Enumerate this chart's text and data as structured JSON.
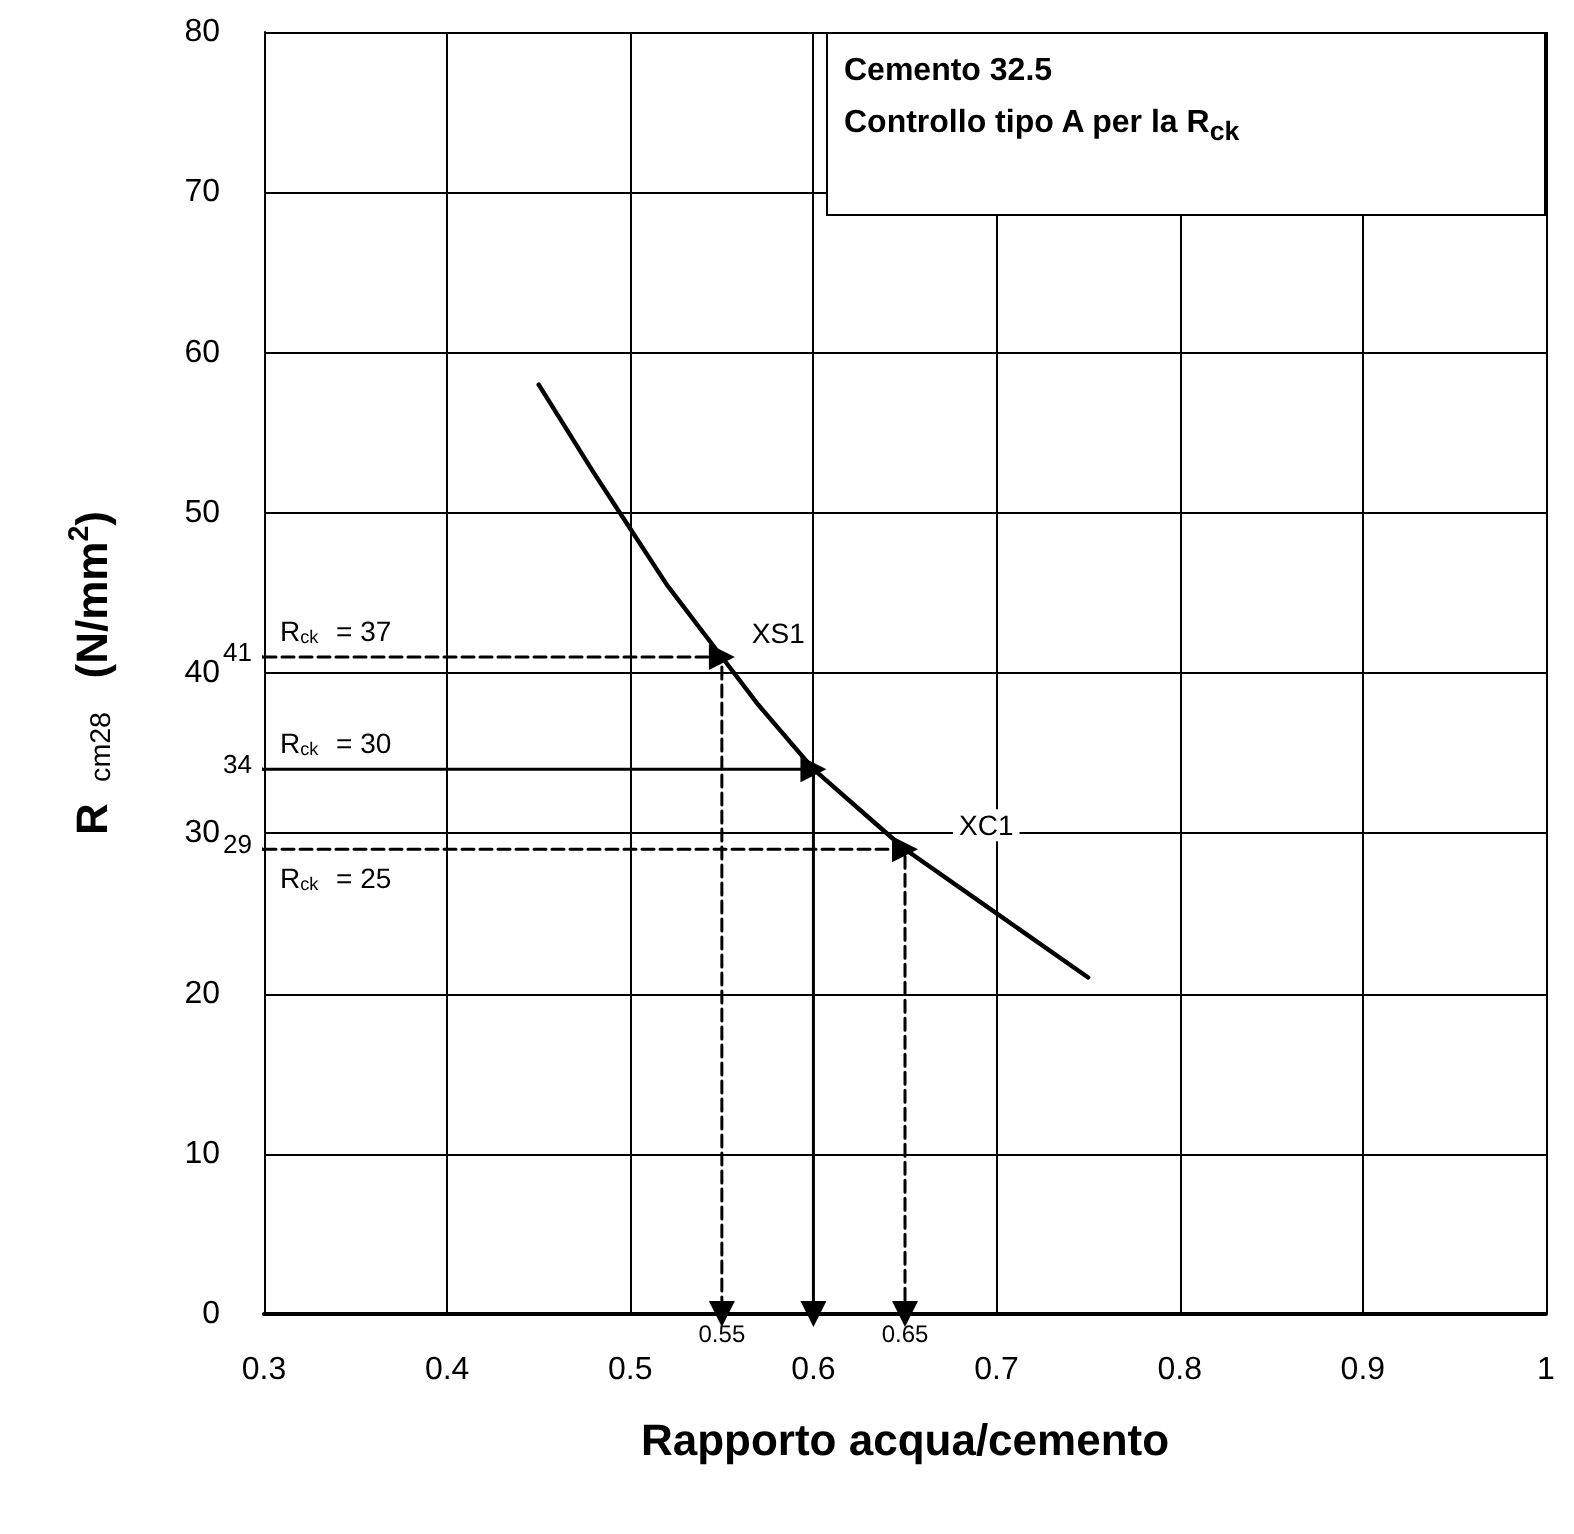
{
  "chart_data": {
    "type": "line",
    "title": "Cemento 32.5",
    "subtitle": "Controllo tipo A per la R$_{ck}$",
    "xlabel": "Rapporto acqua/cemento",
    "ylabel": "R$_{cm28}$ (N/mm$^{2}$)",
    "xlim": [
      0.3,
      1
    ],
    "xticks": [
      0.3,
      0.4,
      0.5,
      0.6,
      0.7,
      0.8,
      0.9,
      1
    ],
    "ylim": [
      0,
      80
    ],
    "yticks": [
      0,
      10,
      20,
      30,
      40,
      50,
      60,
      70,
      80
    ],
    "grid": true,
    "marker": "none",
    "line_style": "solid",
    "series": [
      {
        "color": "#000000",
        "x": [
          0.45,
          0.48,
          0.5,
          0.52,
          0.55,
          0.57,
          0.6,
          0.63,
          0.65,
          0.7,
          0.75
        ],
        "values": [
          58,
          52.5,
          49,
          45.5,
          41,
          38,
          34,
          31,
          29,
          25,
          21
        ]
      },
      {
        "color": "#000000",
        "line_style": "dashed",
        "marker": "triangle",
        "x": [
          0.3,
          0.55,
          0.55
        ],
        "values": [
          41,
          41,
          0
        ]
      },
      {
        "color": "#000000",
        "line_style": "solid",
        "marker": "triangle",
        "x": [
          0.3,
          0.6,
          0.6
        ],
        "values": [
          34,
          34,
          0
        ]
      },
      {
        "color": "#000000",
        "line_style": "dashed",
        "marker": "triangle",
        "x": [
          0.3,
          0.65,
          0.65
        ],
        "values": [
          29,
          29,
          0
        ]
      }
    ],
    "annotations": [
      {
        "text": "R$_{ck}$ = 37",
        "x": 0.3,
        "y": 41
      },
      {
        "text": "R$_{ck}$ = 30",
        "x": 0.3,
        "y": 34
      },
      {
        "text": "R$_{ck}$ = 25",
        "x": 0.3,
        "y": 29
      },
      {
        "text": "XS1",
        "x": 0.55,
        "y": 41
      },
      {
        "text": "XC1",
        "x": 0.65,
        "y": 29
      },
      {
        "text": "41",
        "x": 0.3,
        "y": 41
      },
      {
        "text": "34",
        "x": 0.3,
        "y": 34
      },
      {
        "text": "29",
        "x": 0.3,
        "y": 29
      },
      {
        "text": "0.55",
        "x": 0.55,
        "y": 0
      },
      {
        "text": "0.65",
        "x": 0.65,
        "y": 0
      }
    ]
  }
}
